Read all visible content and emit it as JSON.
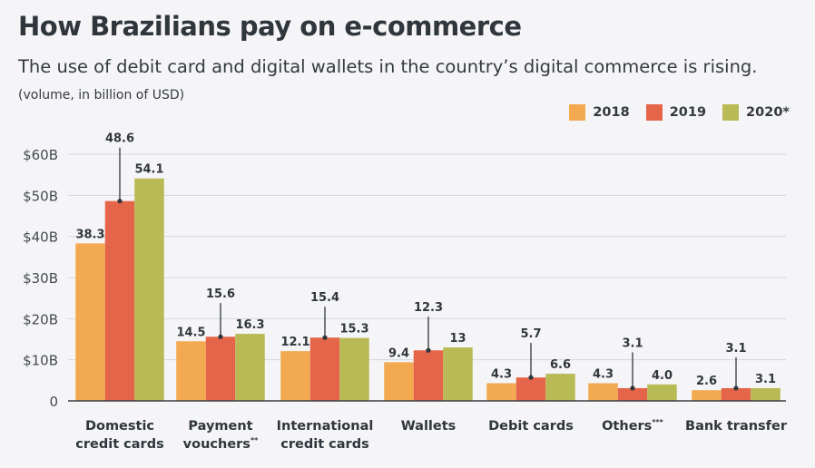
{
  "title": "How Brazilians pay on e-commerce",
  "subtitle": "The use of debit card and digital wallets in the country’s digital commerce is rising.",
  "note": "(volume, in billion of USD)",
  "chart_data": {
    "type": "bar",
    "title": "How Brazilians pay on e-commerce",
    "ylabel": "",
    "xlabel": "",
    "ylim": [
      0,
      60
    ],
    "yticks": [
      0,
      10,
      20,
      30,
      40,
      50,
      60
    ],
    "ytick_labels": [
      "0",
      "$10B",
      "$20B",
      "$30B",
      "$40B",
      "$50B",
      "$60B"
    ],
    "grid": true,
    "legend_position": "top-right",
    "categories": [
      [
        "Domestic",
        "credit cards"
      ],
      [
        "Payment",
        "vouchers**"
      ],
      [
        "International",
        "credit cards"
      ],
      [
        "Wallets"
      ],
      [
        "Debit cards"
      ],
      [
        "Others***"
      ],
      [
        "Bank transfer"
      ]
    ],
    "series": [
      {
        "name": "2018",
        "color": "#f2a950",
        "values": [
          38.3,
          14.5,
          12.1,
          9.4,
          4.3,
          4.3,
          2.6
        ],
        "labels": [
          "38.3",
          "14.5",
          "12.1",
          "9.4",
          "4.3",
          "4.3",
          "2.6"
        ]
      },
      {
        "name": "2019",
        "color": "#e5654a",
        "values": [
          48.6,
          15.6,
          15.4,
          12.3,
          5.7,
          3.1,
          3.1
        ],
        "labels": [
          "48.6",
          "15.6",
          "15.4",
          "12.3",
          "5.7",
          "3.1",
          "3.1"
        ]
      },
      {
        "name": "2020*",
        "color": "#b8ba55",
        "values": [
          54.1,
          16.3,
          15.3,
          13,
          6.6,
          4.0,
          3.1
        ],
        "labels": [
          "54.1",
          "16.3",
          "15.3",
          "13",
          "6.6",
          "4.0",
          "3.1"
        ]
      }
    ]
  }
}
